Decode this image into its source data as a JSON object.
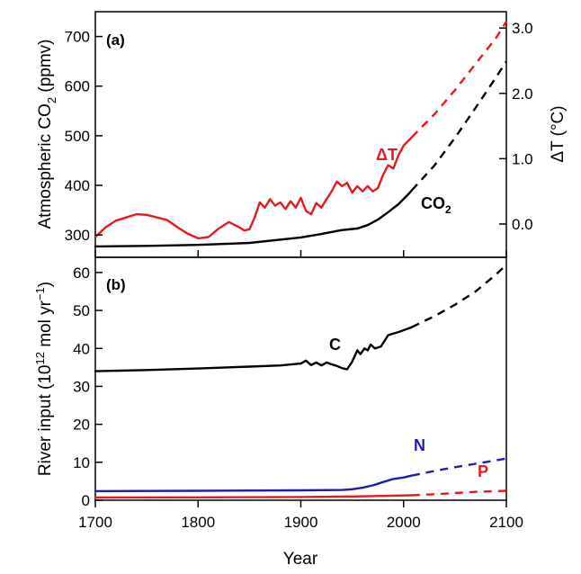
{
  "chart_data": [
    {
      "panel": "(a)",
      "type": "line",
      "xlim": [
        1700,
        2100
      ],
      "ylim_left": [
        255,
        750
      ],
      "ylim_right": [
        -0.51,
        3.25
      ],
      "ylabel_left": {
        "main": "Atmospheric CO",
        "sub": "2",
        "tail": " (ppmv)"
      },
      "ylabel_right": {
        "main": "ΔT (°C)"
      },
      "yticks_left": [
        {
          "v": 300,
          "label": "300"
        },
        {
          "v": 400,
          "label": "400"
        },
        {
          "v": 500,
          "label": "500"
        },
        {
          "v": 600,
          "label": "600"
        },
        {
          "v": 700,
          "label": "700"
        }
      ],
      "yticks_right": [
        {
          "v": 0.0,
          "label": "0.0"
        },
        {
          "v": 1.0,
          "label": "1.0"
        },
        {
          "v": 2.0,
          "label": "2.0"
        },
        {
          "v": 3.0,
          "label": "3.0"
        }
      ],
      "series": [
        {
          "name": "CO2",
          "label_main": "CO",
          "label_sub": "2",
          "axis": "left",
          "color": "#000000",
          "observed": [
            [
              1700,
              277
            ],
            [
              1750,
              278
            ],
            [
              1800,
              280
            ],
            [
              1850,
              284
            ],
            [
              1900,
              295
            ],
            [
              1920,
              302
            ],
            [
              1940,
              310
            ],
            [
              1955,
              313
            ],
            [
              1965,
              320
            ],
            [
              1975,
              331
            ],
            [
              1985,
              346
            ],
            [
              1995,
              362
            ],
            [
              2005,
              383
            ],
            [
              2008,
              390
            ]
          ],
          "projected": [
            [
              2008,
              390
            ],
            [
              2030,
              440
            ],
            [
              2050,
              496
            ],
            [
              2070,
              556
            ],
            [
              2090,
              618
            ],
            [
              2100,
              650
            ]
          ]
        },
        {
          "name": "ΔT",
          "label_main": "ΔT",
          "axis": "right",
          "color": "#e8191c",
          "observed": [
            [
              1700,
              -0.2
            ],
            [
              1710,
              -0.05
            ],
            [
              1720,
              0.05
            ],
            [
              1730,
              0.1
            ],
            [
              1740,
              0.15
            ],
            [
              1750,
              0.14
            ],
            [
              1760,
              0.1
            ],
            [
              1770,
              0.06
            ],
            [
              1780,
              -0.05
            ],
            [
              1790,
              -0.15
            ],
            [
              1800,
              -0.22
            ],
            [
              1810,
              -0.2
            ],
            [
              1820,
              -0.07
            ],
            [
              1830,
              0.03
            ],
            [
              1840,
              -0.05
            ],
            [
              1845,
              -0.1
            ],
            [
              1850,
              -0.08
            ],
            [
              1855,
              0.1
            ],
            [
              1860,
              0.33
            ],
            [
              1865,
              0.25
            ],
            [
              1870,
              0.38
            ],
            [
              1875,
              0.28
            ],
            [
              1880,
              0.33
            ],
            [
              1885,
              0.23
            ],
            [
              1890,
              0.35
            ],
            [
              1895,
              0.25
            ],
            [
              1900,
              0.4
            ],
            [
              1905,
              0.2
            ],
            [
              1910,
              0.15
            ],
            [
              1915,
              0.32
            ],
            [
              1920,
              0.25
            ],
            [
              1925,
              0.38
            ],
            [
              1930,
              0.5
            ],
            [
              1935,
              0.65
            ],
            [
              1940,
              0.58
            ],
            [
              1945,
              0.63
            ],
            [
              1950,
              0.48
            ],
            [
              1955,
              0.58
            ],
            [
              1960,
              0.5
            ],
            [
              1965,
              0.58
            ],
            [
              1970,
              0.5
            ],
            [
              1975,
              0.55
            ],
            [
              1980,
              0.75
            ],
            [
              1985,
              0.9
            ],
            [
              1990,
              0.85
            ],
            [
              1995,
              1.05
            ],
            [
              2000,
              1.2
            ],
            [
              2005,
              1.28
            ],
            [
              2008,
              1.33
            ]
          ],
          "projected": [
            [
              2008,
              1.33
            ],
            [
              2030,
              1.68
            ],
            [
              2050,
              2.05
            ],
            [
              2070,
              2.45
            ],
            [
              2090,
              2.85
            ],
            [
              2100,
              3.1
            ]
          ]
        }
      ]
    },
    {
      "panel": "(b)",
      "type": "line",
      "xlim": [
        1700,
        2100
      ],
      "ylim": [
        0,
        64
      ],
      "xlabel": "Year",
      "ylabel": {
        "main": "River input (10",
        "sup": "12",
        "mid": " mol yr",
        "sup2": "−1",
        "tail": ")"
      },
      "xticks": [
        {
          "v": 1700,
          "label": "1700"
        },
        {
          "v": 1800,
          "label": "1800"
        },
        {
          "v": 1900,
          "label": "1900"
        },
        {
          "v": 2000,
          "label": "2000"
        },
        {
          "v": 2100,
          "label": "2100"
        }
      ],
      "yticks": [
        {
          "v": 0,
          "label": "0"
        },
        {
          "v": 10,
          "label": "10"
        },
        {
          "v": 20,
          "label": "20"
        },
        {
          "v": 30,
          "label": "30"
        },
        {
          "v": 40,
          "label": "40"
        },
        {
          "v": 50,
          "label": "50"
        },
        {
          "v": 60,
          "label": "60"
        }
      ],
      "series": [
        {
          "name": "C",
          "label_main": "C",
          "color": "#000000",
          "observed": [
            [
              1700,
              34
            ],
            [
              1750,
              34.3
            ],
            [
              1800,
              34.7
            ],
            [
              1850,
              35.2
            ],
            [
              1880,
              35.5
            ],
            [
              1900,
              36.0
            ],
            [
              1905,
              36.8
            ],
            [
              1910,
              35.6
            ],
            [
              1915,
              36.3
            ],
            [
              1920,
              35.5
            ],
            [
              1925,
              36.3
            ],
            [
              1930,
              35.8
            ],
            [
              1935,
              35.4
            ],
            [
              1940,
              34.8
            ],
            [
              1945,
              34.5
            ],
            [
              1950,
              36.5
            ],
            [
              1955,
              39.5
            ],
            [
              1958,
              38.5
            ],
            [
              1962,
              40.0
            ],
            [
              1965,
              39.5
            ],
            [
              1968,
              41.0
            ],
            [
              1972,
              40.0
            ],
            [
              1978,
              40.5
            ],
            [
              1985,
              43.5
            ],
            [
              1995,
              44.3
            ],
            [
              2000,
              44.8
            ],
            [
              2008,
              45.6
            ]
          ],
          "projected": [
            [
              2008,
              45.6
            ],
            [
              2030,
              48.5
            ],
            [
              2050,
              51.5
            ],
            [
              2070,
              55.0
            ],
            [
              2090,
              59.5
            ],
            [
              2100,
              62.0
            ]
          ]
        },
        {
          "name": "N",
          "label_main": "N",
          "color": "#1c1cb4",
          "observed": [
            [
              1700,
              2.4
            ],
            [
              1800,
              2.5
            ],
            [
              1900,
              2.6
            ],
            [
              1940,
              2.7
            ],
            [
              1950,
              2.9
            ],
            [
              1960,
              3.3
            ],
            [
              1970,
              3.9
            ],
            [
              1980,
              4.8
            ],
            [
              1990,
              5.6
            ],
            [
              2000,
              6.0
            ],
            [
              2008,
              6.5
            ]
          ],
          "projected": [
            [
              2008,
              6.5
            ],
            [
              2030,
              7.7
            ],
            [
              2050,
              8.7
            ],
            [
              2070,
              9.6
            ],
            [
              2090,
              10.5
            ],
            [
              2100,
              11.0
            ]
          ]
        },
        {
          "name": "P",
          "label_main": "P",
          "color": "#e8191c",
          "observed": [
            [
              1700,
              0.7
            ],
            [
              1800,
              0.75
            ],
            [
              1900,
              0.85
            ],
            [
              1950,
              1.0
            ],
            [
              1970,
              1.1
            ],
            [
              1990,
              1.2
            ],
            [
              2008,
              1.3
            ]
          ],
          "projected": [
            [
              2008,
              1.3
            ],
            [
              2030,
              1.6
            ],
            [
              2050,
              1.9
            ],
            [
              2070,
              2.2
            ],
            [
              2090,
              2.4
            ],
            [
              2100,
              2.5
            ]
          ]
        }
      ]
    }
  ]
}
